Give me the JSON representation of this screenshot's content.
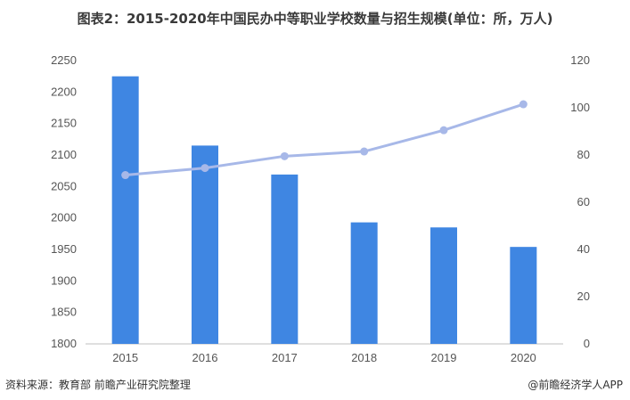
{
  "title": "图表2：2015-2020年中国民办中等职业学校数量与招生规模(单位：所，万人)",
  "footer": {
    "source": "资料来源：教育部 前瞻产业研究院整理",
    "brand": "@前瞻经济学人APP"
  },
  "chart_data": {
    "type": "bar+line",
    "categories": [
      "2015",
      "2016",
      "2017",
      "2018",
      "2019",
      "2020"
    ],
    "series": [
      {
        "type": "bar",
        "axis": "left",
        "values": [
          2225,
          2115,
          2069,
          1993,
          1985,
          1954
        ],
        "color": "#3f86e2"
      },
      {
        "type": "line",
        "axis": "right",
        "values": [
          71.5,
          74.5,
          79.5,
          81.5,
          90.5,
          101.5
        ],
        "color": "#a7b8e8"
      }
    ],
    "y_left": {
      "min": 1800,
      "max": 2250,
      "step": 50
    },
    "y_right": {
      "min": 0,
      "max": 120,
      "step": 20
    },
    "grid": false,
    "legend": "none"
  }
}
